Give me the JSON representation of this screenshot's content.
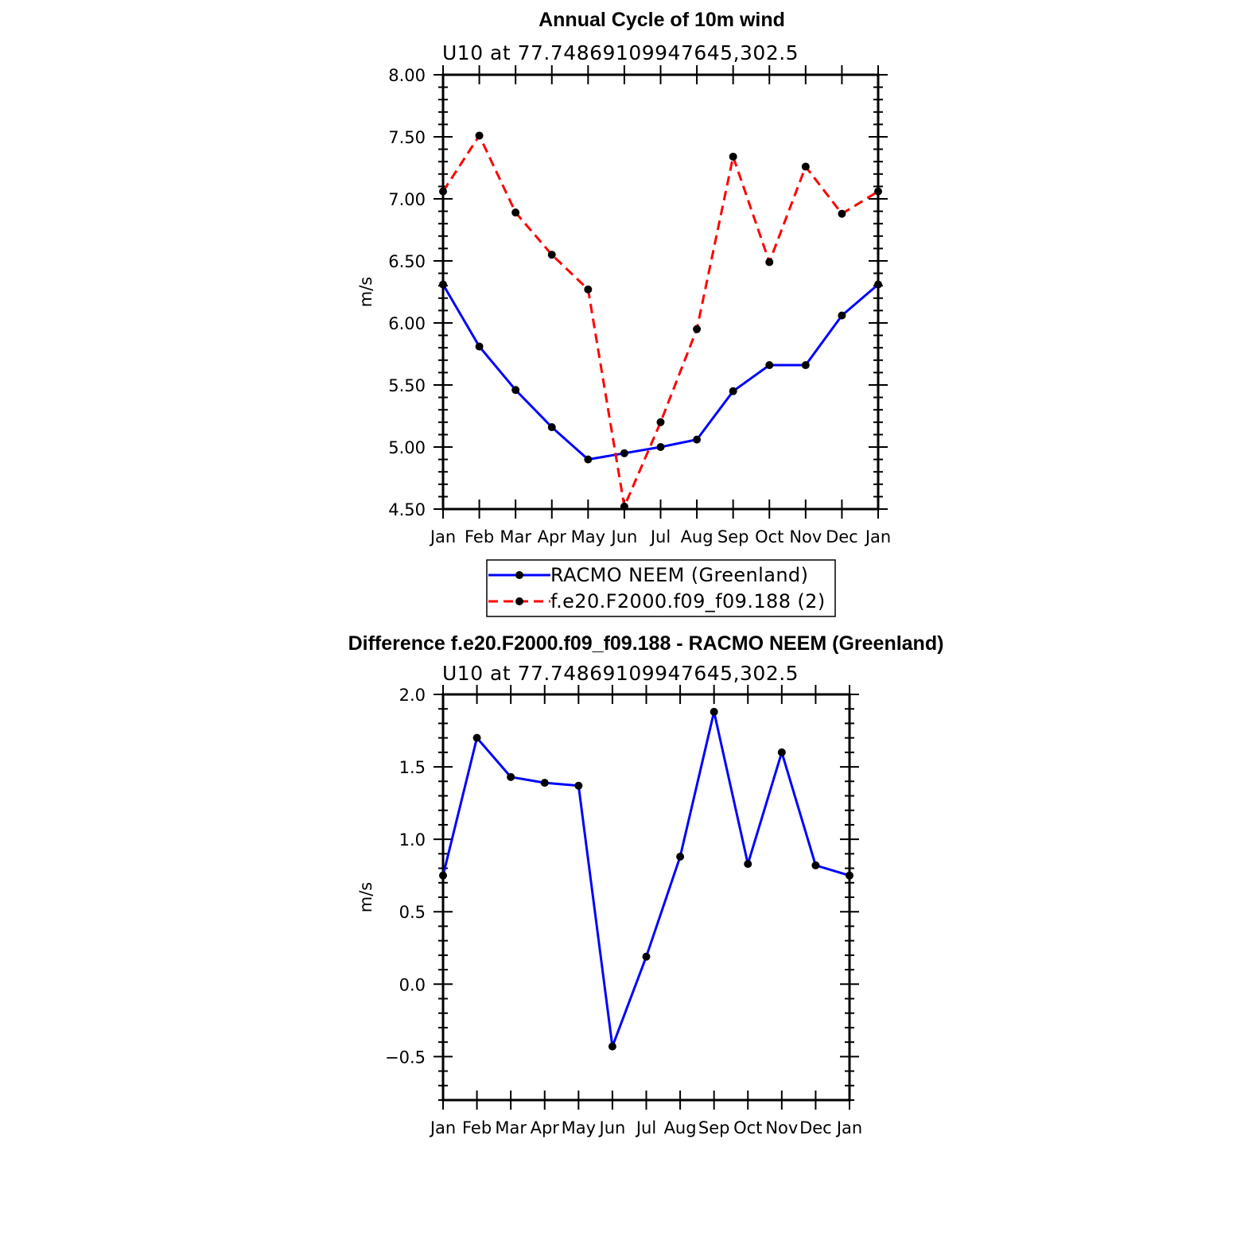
{
  "chart_data": [
    {
      "type": "line",
      "title": "Annual Cycle of 10m wind",
      "subtitle": "U10  at  77.74869109947645,302.5",
      "ylabel": "m/s",
      "xlabel": "",
      "categories": [
        "Jan",
        "Feb",
        "Mar",
        "Apr",
        "May",
        "Jun",
        "Jul",
        "Aug",
        "Sep",
        "Oct",
        "Nov",
        "Dec",
        "Jan"
      ],
      "ylim": [
        4.5,
        8.0
      ],
      "yticks": [
        "4.50",
        "5.00",
        "5.50",
        "6.00",
        "6.50",
        "7.00",
        "7.50",
        "8.00"
      ],
      "legend_position": "bottom",
      "series": [
        {
          "name": "RACMO NEEM (Greenland)",
          "color": "#0000ff",
          "dash": "solid",
          "values": [
            6.31,
            5.81,
            5.46,
            5.16,
            4.9,
            4.95,
            5.0,
            5.06,
            5.45,
            5.66,
            5.66,
            6.06,
            6.31
          ]
        },
        {
          "name": "f.e20.F2000.f09_f09.188 (2)",
          "color": "#ff0000",
          "dash": "dashed",
          "values": [
            7.06,
            7.51,
            6.89,
            6.55,
            6.27,
            4.52,
            5.2,
            5.95,
            7.34,
            6.49,
            7.26,
            6.88,
            7.06
          ]
        }
      ]
    },
    {
      "type": "line",
      "title": "Difference f.e20.F2000.f09_f09.188 - RACMO NEEM (Greenland)",
      "subtitle": "U10  at  77.74869109947645,302.5",
      "ylabel": "m/s",
      "xlabel": "",
      "categories": [
        "Jan",
        "Feb",
        "Mar",
        "Apr",
        "May",
        "Jun",
        "Jul",
        "Aug",
        "Sep",
        "Oct",
        "Nov",
        "Dec",
        "Jan"
      ],
      "ylim": [
        -0.8,
        2.0
      ],
      "yticks": [
        "−0.5",
        "0.0",
        "0.5",
        "1.0",
        "1.5",
        "2.0"
      ],
      "ytick_values": [
        -0.5,
        0.0,
        0.5,
        1.0,
        1.5,
        2.0
      ],
      "series": [
        {
          "name": "Difference",
          "color": "#0000ff",
          "dash": "solid",
          "values": [
            0.75,
            1.7,
            1.43,
            1.39,
            1.37,
            -0.43,
            0.19,
            0.88,
            1.88,
            0.83,
            1.6,
            0.82,
            0.75
          ]
        }
      ]
    }
  ]
}
